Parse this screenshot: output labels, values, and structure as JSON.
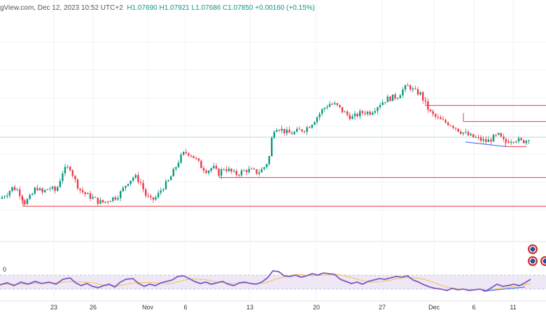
{
  "header": {
    "source_fragment": "gView.com, Dec 12, 2023 10:52 UTC+2",
    "ohlc": "H1.07690  H1.07921  L1.07686  C1.07850  +0.00160 (+0.15%)"
  },
  "rsi_label": "0",
  "flags": [
    "eu-flag-icon",
    "us-flag-icon"
  ],
  "colors": {
    "bull": "#089981",
    "bear": "#f23645",
    "level": "#f23645",
    "rsi_line": "#7e57c2",
    "rsi_band": "#ede7f6",
    "rsi_ma": "#f5c242",
    "trend": "#2962ff"
  },
  "chart_data": {
    "type": "candlestick",
    "title": "",
    "x_tick_labels": [
      "23",
      "26",
      "Nov",
      "6",
      "13",
      "20",
      "27",
      "Dec",
      "6",
      "11"
    ],
    "x_tick_pos": [
      77,
      133,
      211,
      265,
      357,
      452,
      546,
      620,
      677,
      733
    ],
    "price_range": [
      1.045,
      1.105
    ],
    "path": [
      [
        0,
        1.0555
      ],
      [
        10,
        1.057
      ],
      [
        18,
        1.0585
      ],
      [
        26,
        1.0578
      ],
      [
        35,
        1.0545
      ],
      [
        44,
        1.056
      ],
      [
        52,
        1.0588
      ],
      [
        60,
        1.057
      ],
      [
        70,
        1.0585
      ],
      [
        80,
        1.0575
      ],
      [
        90,
        1.063
      ],
      [
        100,
        1.064
      ],
      [
        108,
        1.06
      ],
      [
        115,
        1.0578
      ],
      [
        124,
        1.0565
      ],
      [
        132,
        1.0558
      ],
      [
        140,
        1.0548
      ],
      [
        148,
        1.0545
      ],
      [
        158,
        1.0555
      ],
      [
        166,
        1.056
      ],
      [
        174,
        1.0575
      ],
      [
        182,
        1.06
      ],
      [
        192,
        1.0615
      ],
      [
        200,
        1.0602
      ],
      [
        208,
        1.0565
      ],
      [
        216,
        1.055
      ],
      [
        224,
        1.056
      ],
      [
        232,
        1.0585
      ],
      [
        240,
        1.06
      ],
      [
        248,
        1.0628
      ],
      [
        256,
        1.066
      ],
      [
        264,
        1.068
      ],
      [
        272,
        1.0676
      ],
      [
        280,
        1.066
      ],
      [
        288,
        1.064
      ],
      [
        296,
        1.063
      ],
      [
        304,
        1.064
      ],
      [
        312,
        1.0622
      ],
      [
        320,
        1.0638
      ],
      [
        328,
        1.063
      ],
      [
        336,
        1.062
      ],
      [
        344,
        1.0626
      ],
      [
        352,
        1.0632
      ],
      [
        360,
        1.063
      ],
      [
        368,
        1.0625
      ],
      [
        376,
        1.0636
      ],
      [
        384,
        1.066
      ],
      [
        390,
        1.074
      ],
      [
        396,
        1.0748
      ],
      [
        404,
        1.0738
      ],
      [
        412,
        1.073
      ],
      [
        420,
        1.0732
      ],
      [
        428,
        1.0738
      ],
      [
        436,
        1.0742
      ],
      [
        444,
        1.0755
      ],
      [
        452,
        1.0772
      ],
      [
        460,
        1.0792
      ],
      [
        470,
        1.081
      ],
      [
        480,
        1.0806
      ],
      [
        488,
        1.0792
      ],
      [
        496,
        1.078
      ],
      [
        504,
        1.0772
      ],
      [
        512,
        1.0782
      ],
      [
        520,
        1.0788
      ],
      [
        528,
        1.0786
      ],
      [
        536,
        1.0798
      ],
      [
        544,
        1.0812
      ],
      [
        552,
        1.0822
      ],
      [
        560,
        1.0826
      ],
      [
        568,
        1.083
      ],
      [
        576,
        1.0848
      ],
      [
        584,
        1.0858
      ],
      [
        592,
        1.0842
      ],
      [
        600,
        1.0838
      ],
      [
        608,
        1.0808
      ],
      [
        616,
        1.0782
      ],
      [
        624,
        1.0772
      ],
      [
        632,
        1.0762
      ],
      [
        640,
        1.0758
      ],
      [
        648,
        1.075
      ],
      [
        656,
        1.0738
      ],
      [
        664,
        1.073
      ],
      [
        672,
        1.0722
      ],
      [
        680,
        1.0718
      ],
      [
        688,
        1.0712
      ],
      [
        696,
        1.0708
      ],
      [
        704,
        1.0718
      ],
      [
        712,
        1.0725
      ],
      [
        720,
        1.0708
      ],
      [
        728,
        1.0712
      ],
      [
        736,
        1.0716
      ],
      [
        744,
        1.0708
      ],
      [
        752,
        1.0712
      ],
      [
        758,
        1.0725
      ]
    ],
    "support_resistance": [
      {
        "price": 1.0535,
        "x_start": 33
      },
      {
        "price": 1.0612,
        "x_start": 313
      },
      {
        "price": 1.0695,
        "x_start": 722,
        "x_end": 752
      },
      {
        "price": 1.0762,
        "x_start": 662
      },
      {
        "price": 1.0805,
        "x_start": 608
      }
    ],
    "current_price_line": 1.072,
    "trendline": [
      [
        665,
        1.0707
      ],
      [
        722,
        1.0695
      ]
    ],
    "rsi": {
      "range": [
        0,
        100
      ],
      "levels": [
        70,
        30
      ],
      "values": [
        [
          0,
          42
        ],
        [
          10,
          48
        ],
        [
          20,
          40
        ],
        [
          30,
          50
        ],
        [
          40,
          44
        ],
        [
          50,
          52
        ],
        [
          60,
          46
        ],
        [
          70,
          50
        ],
        [
          80,
          44
        ],
        [
          90,
          58
        ],
        [
          100,
          62
        ],
        [
          108,
          48
        ],
        [
          116,
          40
        ],
        [
          124,
          46
        ],
        [
          132,
          38
        ],
        [
          140,
          34
        ],
        [
          148,
          40
        ],
        [
          156,
          44
        ],
        [
          164,
          36
        ],
        [
          172,
          50
        ],
        [
          180,
          58
        ],
        [
          190,
          60
        ],
        [
          198,
          46
        ],
        [
          206,
          38
        ],
        [
          214,
          44
        ],
        [
          222,
          40
        ],
        [
          230,
          48
        ],
        [
          238,
          52
        ],
        [
          246,
          56
        ],
        [
          254,
          66
        ],
        [
          262,
          68
        ],
        [
          270,
          60
        ],
        [
          278,
          52
        ],
        [
          286,
          46
        ],
        [
          294,
          50
        ],
        [
          302,
          44
        ],
        [
          310,
          48
        ],
        [
          318,
          52
        ],
        [
          326,
          44
        ],
        [
          334,
          40
        ],
        [
          342,
          48
        ],
        [
          350,
          50
        ],
        [
          358,
          46
        ],
        [
          366,
          44
        ],
        [
          374,
          50
        ],
        [
          382,
          62
        ],
        [
          390,
          82
        ],
        [
          398,
          80
        ],
        [
          406,
          68
        ],
        [
          414,
          66
        ],
        [
          422,
          70
        ],
        [
          430,
          64
        ],
        [
          438,
          68
        ],
        [
          446,
          74
        ],
        [
          454,
          70
        ],
        [
          462,
          76
        ],
        [
          470,
          74
        ],
        [
          478,
          72
        ],
        [
          486,
          58
        ],
        [
          494,
          52
        ],
        [
          502,
          46
        ],
        [
          510,
          50
        ],
        [
          518,
          44
        ],
        [
          526,
          52
        ],
        [
          534,
          56
        ],
        [
          542,
          60
        ],
        [
          550,
          58
        ],
        [
          558,
          62
        ],
        [
          566,
          66
        ],
        [
          574,
          64
        ],
        [
          582,
          68
        ],
        [
          590,
          56
        ],
        [
          598,
          50
        ],
        [
          606,
          42
        ],
        [
          614,
          36
        ],
        [
          622,
          32
        ],
        [
          630,
          30
        ],
        [
          638,
          26
        ],
        [
          646,
          32
        ],
        [
          654,
          28
        ],
        [
          662,
          30
        ],
        [
          670,
          26
        ],
        [
          678,
          28
        ],
        [
          686,
          30
        ],
        [
          694,
          24
        ],
        [
          702,
          34
        ],
        [
          710,
          44
        ],
        [
          718,
          38
        ],
        [
          726,
          40
        ],
        [
          734,
          44
        ],
        [
          742,
          40
        ],
        [
          750,
          48
        ],
        [
          758,
          58
        ]
      ],
      "trendline": [
        [
          690,
          24
        ],
        [
          750,
          36
        ]
      ]
    }
  }
}
